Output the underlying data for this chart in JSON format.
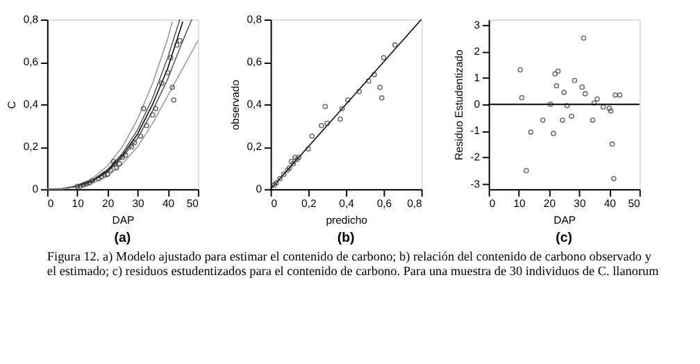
{
  "chart_data": [
    {
      "type": "scatter",
      "xlabel": "DAP",
      "ylabel": "C",
      "annotations": [
        "(a)"
      ],
      "grid": false,
      "xlim": [
        0,
        50
      ],
      "ylim": [
        0,
        0.8
      ],
      "xticks": [
        0,
        10,
        20,
        30,
        40,
        50
      ],
      "yticks": [
        0,
        {
          "value": 0.2,
          "label": "0,2"
        },
        {
          "value": 0.4,
          "label": "0,4"
        },
        {
          "value": 0.6,
          "label": "0,6"
        },
        {
          "value": 0.8,
          "label": "0,8"
        }
      ],
      "series": [
        {
          "type": "line",
          "color": "#999999",
          "x": [
            0,
            5,
            10,
            15,
            20,
            25,
            30,
            35,
            40,
            41.5
          ],
          "values": [
            0,
            0.003,
            0.017,
            0.05,
            0.11,
            0.2,
            0.33,
            0.5,
            0.71,
            0.79
          ]
        },
        {
          "type": "line",
          "color": "#555555",
          "x": [
            0,
            5,
            10,
            15,
            20,
            25,
            30,
            35,
            40,
            44
          ],
          "values": [
            0,
            0.002,
            0.014,
            0.042,
            0.092,
            0.17,
            0.28,
            0.43,
            0.62,
            0.8
          ]
        },
        {
          "type": "line",
          "color": "#000000",
          "x": [
            0,
            5,
            10,
            15,
            20,
            25,
            30,
            35,
            40,
            45
          ],
          "values": [
            0,
            0.002,
            0.013,
            0.039,
            0.086,
            0.16,
            0.26,
            0.4,
            0.57,
            0.79
          ]
        },
        {
          "type": "line",
          "color": "#555555",
          "x": [
            0,
            5,
            10,
            15,
            20,
            25,
            30,
            35,
            40,
            45,
            48
          ],
          "values": [
            0,
            0.002,
            0.012,
            0.036,
            0.08,
            0.15,
            0.24,
            0.37,
            0.52,
            0.7,
            0.8
          ]
        },
        {
          "type": "line",
          "color": "#999999",
          "x": [
            0,
            5,
            10,
            15,
            20,
            25,
            30,
            35,
            40,
            45,
            50
          ],
          "values": [
            0,
            0.001,
            0.01,
            0.028,
            0.06,
            0.12,
            0.2,
            0.31,
            0.44,
            0.57,
            0.7
          ]
        },
        {
          "color": "#333333",
          "marker": "circle",
          "x": [
            10,
            11,
            12,
            13,
            14,
            15,
            17,
            18,
            19,
            20,
            21,
            22,
            22.5,
            23,
            24,
            25,
            26,
            28,
            29,
            31,
            32,
            33,
            35,
            36,
            38,
            40,
            41,
            41.5,
            42,
            43,
            44
          ],
          "values": [
            0.013,
            0.015,
            0.02,
            0.025,
            0.03,
            0.04,
            0.05,
            0.06,
            0.07,
            0.07,
            0.09,
            0.13,
            0.12,
            0.1,
            0.12,
            0.15,
            0.16,
            0.2,
            0.22,
            0.25,
            0.38,
            0.3,
            0.35,
            0.38,
            0.5,
            0.55,
            0.62,
            0.48,
            0.42,
            0.68,
            0.7
          ]
        }
      ]
    },
    {
      "type": "scatter",
      "xlabel": "predicho",
      "ylabel": "observado",
      "annotations": [
        "(b)"
      ],
      "grid": false,
      "xlim": [
        0,
        0.8
      ],
      "ylim": [
        0,
        0.8
      ],
      "xticks": [
        0,
        {
          "value": 0.2,
          "label": "0,2"
        },
        {
          "value": 0.4,
          "label": "0,4"
        },
        {
          "value": 0.6,
          "label": "0,6"
        },
        {
          "value": 0.8,
          "label": "0,8"
        }
      ],
      "yticks": [
        0,
        {
          "value": 0.2,
          "label": "0,2"
        },
        {
          "value": 0.4,
          "label": "0,4"
        },
        {
          "value": 0.6,
          "label": "0,6"
        },
        {
          "value": 0.8,
          "label": "0,8"
        }
      ],
      "series": [
        {
          "type": "line",
          "color": "#000000",
          "x": [
            0,
            0.8
          ],
          "values": [
            0,
            0.8
          ]
        },
        {
          "color": "#333333",
          "marker": "circle",
          "x": [
            0.02,
            0.03,
            0.05,
            0.07,
            0.09,
            0.1,
            0.11,
            0.12,
            0.13,
            0.14,
            0.15,
            0.2,
            0.22,
            0.27,
            0.29,
            0.3,
            0.37,
            0.38,
            0.41,
            0.47,
            0.52,
            0.55,
            0.58,
            0.59,
            0.6,
            0.66
          ],
          "values": [
            0.02,
            0.03,
            0.05,
            0.07,
            0.09,
            0.1,
            0.13,
            0.12,
            0.15,
            0.14,
            0.15,
            0.19,
            0.25,
            0.3,
            0.39,
            0.31,
            0.33,
            0.38,
            0.42,
            0.46,
            0.51,
            0.54,
            0.48,
            0.43,
            0.62,
            0.68
          ]
        }
      ]
    },
    {
      "type": "scatter",
      "xlabel": "DAP",
      "ylabel": "Residuo Estudentizado",
      "grid": false,
      "annotations": [
        "(c)",
        "Figura 12. a) Modelo ajustado para estimar el contenido de carbono; b) relación del contenido de carbono observado y el estimado; c) residuos estudentizados para el contenido de carbono. Para una muestra de 30 individuos de C. llanorum"
      ],
      "xlim": [
        0,
        50
      ],
      "ylim": [
        -3.2,
        3.2
      ],
      "xticks": [
        0,
        10,
        20,
        30,
        40,
        50
      ],
      "yticks": [
        -3,
        -2,
        -1,
        0,
        1,
        2,
        3
      ],
      "ref_lines": [
        {
          "axis": "y",
          "value": 0,
          "color": "#000000"
        }
      ],
      "series": [
        {
          "color": "#333333",
          "marker": "circle",
          "x": [
            10.5,
            11,
            12.5,
            14,
            18,
            20.5,
            21.5,
            22,
            22.5,
            23,
            24.5,
            25,
            26,
            27.5,
            28.5,
            31,
            31.5,
            32,
            34.5,
            35,
            36,
            38,
            40,
            40.5,
            41,
            41.5,
            42,
            43.5
          ],
          "values": [
            1.3,
            0.25,
            -2.5,
            -1.05,
            -0.6,
            0,
            -1.1,
            1.15,
            0.7,
            1.25,
            -0.6,
            0.45,
            -0.05,
            -0.45,
            0.9,
            0.65,
            2.5,
            0.4,
            -0.6,
            0.05,
            0.2,
            -0.1,
            -0.15,
            -0.25,
            -1.5,
            -2.8,
            0.35,
            0.35
          ]
        }
      ]
    }
  ]
}
